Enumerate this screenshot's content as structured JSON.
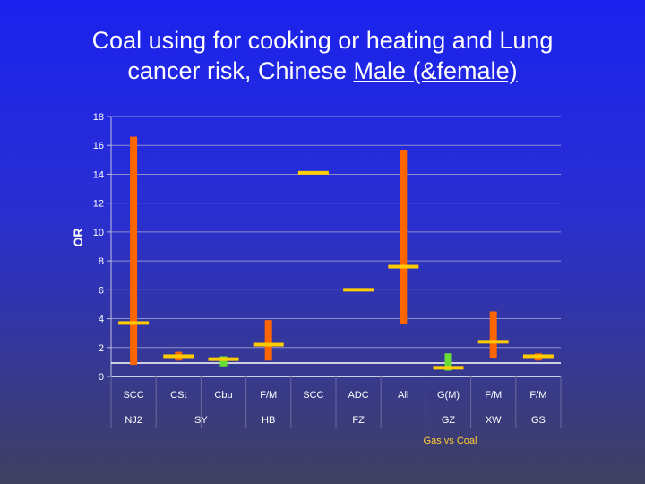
{
  "title": {
    "line1": "Coal using for cooking or heating and Lung",
    "line2_plain": "cancer risk, Chinese ",
    "line2_underlined": "Male (&female)"
  },
  "chart_data": {
    "type": "high-low-close",
    "ylabel": "OR",
    "ylim": [
      0,
      18
    ],
    "yticks": [
      0,
      2,
      4,
      6,
      8,
      10,
      12,
      14,
      16,
      18
    ],
    "grid": true,
    "categories": [
      "SCC",
      "CSt",
      "Cbu",
      "F/M",
      "SCC",
      "ADC",
      "All",
      "G(M)",
      "F/M",
      "F/M"
    ],
    "groups": [
      {
        "label": "NJ2",
        "start": 0,
        "end": 0
      },
      {
        "label": "SY",
        "start": 1,
        "end": 2
      },
      {
        "label": "HB",
        "start": 3,
        "end": 3
      },
      {
        "label": "FZ",
        "start": 4,
        "end": 6
      },
      {
        "label": "GZ",
        "start": 7,
        "end": 7
      },
      {
        "label": "XW",
        "start": 8,
        "end": 8
      },
      {
        "label": "GS",
        "start": 9,
        "end": 9
      }
    ],
    "points": [
      {
        "low": 0.8,
        "high": 16.6,
        "value": 3.7,
        "color": "#ff6600"
      },
      {
        "low": 1.1,
        "high": 1.7,
        "value": 1.4,
        "color": "#ff6600"
      },
      {
        "low": 0.7,
        "high": 1.4,
        "value": 1.2,
        "color": "#66dd33"
      },
      {
        "low": 1.1,
        "high": 3.9,
        "value": 2.2,
        "color": "#ff6600"
      },
      {
        "low": null,
        "high": null,
        "value": 14.1,
        "color": "#ff6600"
      },
      {
        "low": null,
        "high": null,
        "value": 6.0,
        "color": "#ff6600"
      },
      {
        "low": 3.6,
        "high": 15.7,
        "value": 7.6,
        "color": "#ff6600"
      },
      {
        "low": 0.4,
        "high": 1.6,
        "value": 0.6,
        "color": "#66dd33"
      },
      {
        "low": 1.3,
        "high": 4.5,
        "value": 2.4,
        "color": "#ff6600"
      },
      {
        "low": 1.1,
        "high": 1.6,
        "value": 1.4,
        "color": "#ff6600"
      }
    ],
    "value_color": "#ffcc00",
    "annotation": "Gas vs Coal"
  }
}
